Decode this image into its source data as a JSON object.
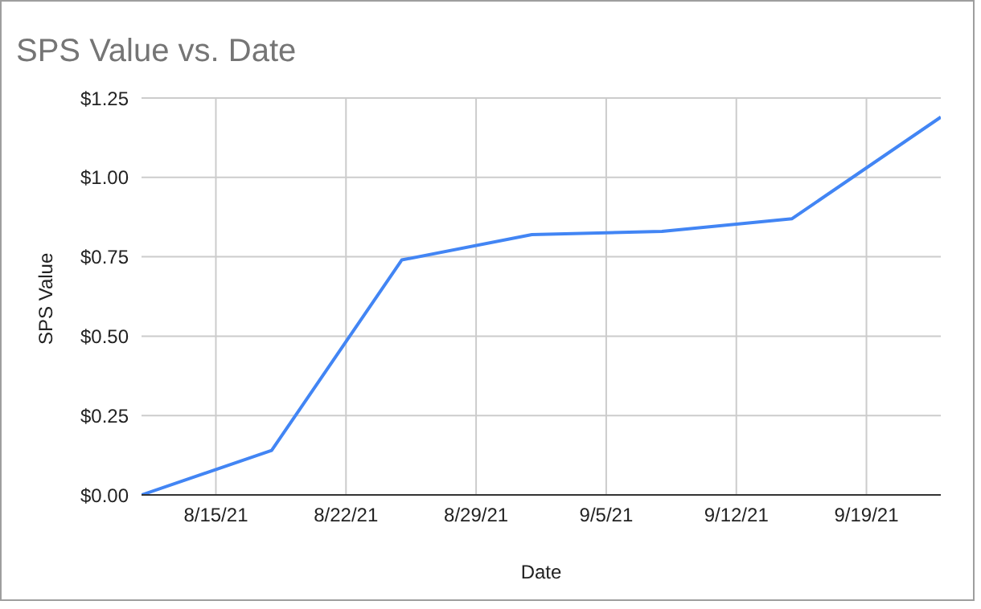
{
  "chart_data": {
    "type": "line",
    "title": "SPS Value vs. Date",
    "xlabel": "Date",
    "ylabel": "SPS Value",
    "x": [
      "--08-11",
      "--08-18",
      "--08-25",
      "--09-01",
      "--09-08",
      "--09-15",
      "--09-23"
    ],
    "series": [
      {
        "color": "#4285f4",
        "values": [
          0,
          0.14,
          0.74,
          0.82,
          0.83,
          0.87,
          1.19
        ]
      }
    ],
    "xlim": [
      "--08-11",
      "--09-23"
    ],
    "xticks": [
      {
        "value": "--08-15",
        "label": "8/15/21"
      },
      {
        "value": "--08-22",
        "label": "8/22/21"
      },
      {
        "value": "--08-29",
        "label": "8/29/21"
      },
      {
        "value": "--09-05",
        "label": "9/5/21"
      },
      {
        "value": "--09-12",
        "label": "9/12/21"
      },
      {
        "value": "--09-19",
        "label": "9/19/21"
      }
    ],
    "ylim": [
      0,
      1.25
    ],
    "yticks": [
      {
        "value": 0,
        "label": "$0.00"
      },
      {
        "value": 0.25,
        "label": "$0.25"
      },
      {
        "value": 0.5,
        "label": "$0.50"
      },
      {
        "value": 0.75,
        "label": "$0.75"
      },
      {
        "value": 1,
        "label": "$1.00"
      },
      {
        "value": 1.25,
        "label": "$1.25"
      }
    ],
    "grid": true
  }
}
